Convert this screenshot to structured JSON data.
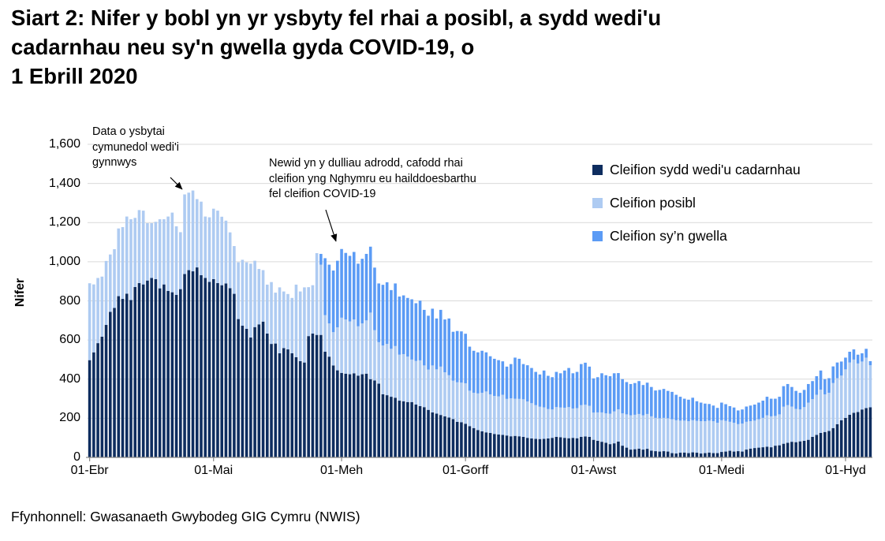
{
  "title_lines": [
    "Siart 2: Nifer y bobl yn yr ysbyty fel rhai a posibl, a sydd wedi'u",
    "cadarnhau neu sy'n gwella gyda COVID-19, o",
    "1 Ebrill 2020"
  ],
  "y_axis": {
    "title": "Nifer",
    "tick_labels": [
      "0",
      "200",
      "400",
      "600",
      "800",
      "1,000",
      "1,200",
      "1,400",
      "1,600"
    ],
    "tick_values": [
      0,
      200,
      400,
      600,
      800,
      1000,
      1200,
      1400,
      1600
    ]
  },
  "x_axis": {
    "tick_labels": [
      "01-Ebr",
      "01-Mai",
      "01-Meh",
      "01-Gorff",
      "01-Awst",
      "01-Medi",
      "01-Hyd"
    ],
    "tick_day_indices": [
      0,
      30,
      61,
      91,
      122,
      153,
      183
    ]
  },
  "legend": {
    "items": [
      {
        "label": "Cleifion sydd wedi'u cadarnhau",
        "color": "#0E2D5F"
      },
      {
        "label": "Cleifion posibl",
        "color": "#AECBF2"
      },
      {
        "label": "Cleifion sy’n gwella",
        "color": "#5B9BF5"
      }
    ]
  },
  "annotations": [
    {
      "lines": [
        "Data o ysbytai",
        "cymunedol wedi'i",
        "gynnwys"
      ]
    },
    {
      "lines": [
        "Newid yn y dulliau adrodd, cafodd rhai",
        "cleifion yng Nghymru eu hailddoesbarthu",
        "fel cleifion COVID-19"
      ]
    }
  ],
  "source": "Ffynhonnell: Gwasanaeth Gwybodeg GIG Cymru (NWIS)",
  "colors": {
    "confirmed": "#0E2D5F",
    "possible": "#AECBF2",
    "recovering": "#5B9BF5",
    "grid": "#D9D9D9",
    "axis": "#898989",
    "text": "#000000"
  },
  "chart_data": {
    "type": "bar",
    "stacked": true,
    "title": "Siart 2: Nifer y bobl yn yr ysbyty fel rhai a posibl, a sydd wedi'u cadarnhau neu sy'n gwella gyda COVID-19, o 1 Ebrill 2020",
    "xlabel": "",
    "ylabel": "Nifer",
    "ylim": [
      0,
      1600
    ],
    "grid": true,
    "legend_position": "top-right",
    "n_days": 190,
    "x_start_label": "01-Ebr",
    "x_tick_labels": [
      "01-Ebr",
      "01-Mai",
      "01-Meh",
      "01-Gorff",
      "01-Awst",
      "01-Medi",
      "01-Hyd"
    ],
    "x_tick_day_indices": [
      0,
      30,
      61,
      91,
      122,
      153,
      183
    ],
    "series": [
      {
        "name": "Cleifion sydd wedi'u cadarnhau",
        "color": "#0E2D5F",
        "values": [
          497,
          537,
          584,
          617,
          677,
          744,
          764,
          824,
          810,
          837,
          804,
          871,
          891,
          884,
          904,
          917,
          911,
          864,
          884,
          851,
          844,
          831,
          860,
          937,
          957,
          951,
          971,
          931,
          917,
          897,
          911,
          891,
          880,
          889,
          865,
          836,
          707,
          673,
          657,
          613,
          666,
          680,
          694,
          633,
          580,
          582,
          532,
          559,
          552,
          532,
          512,
          492,
          485,
          620,
          633,
          626,
          626,
          540,
          515,
          470,
          445,
          432,
          428,
          425,
          430,
          418,
          425,
          428,
          400,
          393,
          377,
          323,
          318,
          310,
          305,
          290,
          287,
          283,
          283,
          270,
          262,
          257,
          243,
          230,
          224,
          217,
          210,
          204,
          196,
          182,
          180,
          172,
          160,
          150,
          140,
          133,
          128,
          125,
          120,
          117,
          115,
          112,
          108,
          110,
          108,
          105,
          100,
          97,
          95,
          94,
          95,
          97,
          100,
          105,
          103,
          100,
          98,
          100,
          98,
          105,
          107,
          105,
          90,
          85,
          80,
          75,
          68,
          72,
          81,
          60,
          50,
          40,
          42,
          45,
          40,
          44,
          35,
          32,
          30,
          32,
          30,
          22,
          20,
          24,
          25,
          22,
          26,
          24,
          20,
          22,
          25,
          22,
          22,
          28,
          30,
          34,
          30,
          32,
          30,
          40,
          45,
          48,
          50,
          52,
          55,
          52,
          60,
          62,
          70,
          75,
          80,
          78,
          82,
          85,
          90,
          105,
          115,
          125,
          130,
          135,
          150,
          170,
          190,
          202,
          218,
          228,
          232,
          245,
          252,
          256
        ]
      },
      {
        "name": "Cleifion posibl",
        "color": "#AECBF2",
        "values": [
          393,
          347,
          333,
          307,
          327,
          293,
          300,
          346,
          367,
          394,
          413,
          353,
          373,
          377,
          293,
          280,
          293,
          353,
          333,
          380,
          407,
          350,
          291,
          407,
          396,
          413,
          349,
          376,
          314,
          330,
          360,
          370,
          350,
          321,
          285,
          244,
          290,
          337,
          340,
          377,
          339,
          283,
          263,
          250,
          316,
          260,
          337,
          289,
          283,
          283,
          371,
          356,
          384,
          250,
          247,
          418,
          359,
          187,
          170,
          170,
          220,
          282,
          277,
          270,
          275,
          252,
          260,
          272,
          340,
          257,
          212,
          249,
          262,
          245,
          264,
          235,
          241,
          232,
          217,
          223,
          234,
          213,
          206,
          240,
          226,
          247,
          225,
          216,
          196,
          202,
          202,
          207,
          181,
          180,
          187,
          197,
          209,
          197,
          194,
          195,
          205,
          187,
          194,
          190,
          191,
          192,
          186,
          180,
          172,
          165,
          161,
          150,
          145,
          152,
          152,
          154,
          159,
          150,
          154,
          162,
          162,
          159,
          139,
          145,
          150,
          150,
          155,
          163,
          165,
          165,
          170,
          175,
          176,
          177,
          175,
          178,
          175,
          170,
          170,
          170,
          170,
          173,
          170,
          164,
          163,
          163,
          164,
          163,
          165,
          163,
          163,
          163,
          155,
          162,
          157,
          148,
          147,
          138,
          143,
          142,
          140,
          140,
          145,
          150,
          160,
          158,
          152,
          158,
          189,
          192,
          180,
          170,
          163,
          172,
          190,
          193,
          205,
          221,
          192,
          195,
          230,
          235,
          228,
          248,
          267,
          272,
          248,
          245,
          258,
          215
        ]
      },
      {
        "name": "Cleifion sy’n gwella",
        "color": "#5B9BF5",
        "values": [
          0,
          0,
          0,
          0,
          0,
          0,
          0,
          0,
          0,
          0,
          0,
          0,
          0,
          0,
          0,
          0,
          0,
          0,
          0,
          0,
          0,
          0,
          0,
          0,
          0,
          0,
          0,
          0,
          0,
          0,
          0,
          0,
          0,
          0,
          0,
          0,
          0,
          0,
          0,
          0,
          0,
          0,
          0,
          0,
          0,
          0,
          0,
          0,
          0,
          0,
          0,
          0,
          0,
          0,
          0,
          0,
          55,
          291,
          300,
          315,
          340,
          351,
          340,
          335,
          345,
          320,
          330,
          340,
          337,
          320,
          300,
          310,
          315,
          300,
          320,
          297,
          300,
          300,
          308,
          295,
          305,
          284,
          275,
          290,
          260,
          290,
          270,
          290,
          250,
          262,
          262,
          253,
          225,
          215,
          210,
          215,
          200,
          195,
          190,
          185,
          171,
          165,
          175,
          210,
          205,
          180,
          185,
          180,
          170,
          165,
          188,
          170,
          165,
          180,
          175,
          190,
          200,
          180,
          185,
          210,
          215,
          200,
          175,
          180,
          200,
          195,
          192,
          195,
          185,
          175,
          165,
          160,
          162,
          168,
          155,
          160,
          150,
          140,
          145,
          148,
          140,
          140,
          130,
          122,
          112,
          110,
          115,
          100,
          95,
          90,
          85,
          80,
          76,
          90,
          85,
          80,
          78,
          70,
          72,
          78,
          80,
          82,
          85,
          88,
          95,
          90,
          88,
          90,
          105,
          108,
          100,
          92,
          85,
          88,
          95,
          92,
          95,
          98,
          78,
          75,
          85,
          80,
          72,
          60,
          55,
          52,
          45,
          42,
          45,
          21
        ]
      }
    ]
  }
}
